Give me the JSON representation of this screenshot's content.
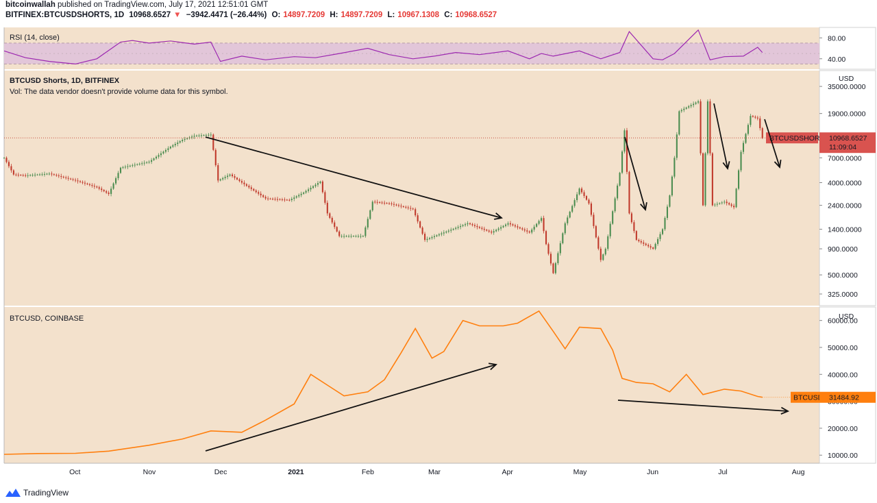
{
  "header": {
    "author": "bitcoinwallah",
    "published_text": " published on TradingView.com, July 17, 2021 12:51:01 GMT",
    "symbol": "BITFINEX:BTCUSDSHORTS, 1D",
    "last": "10968.6527",
    "change": "−3942.4471 (−26.44%)",
    "o_label": "O:",
    "o_value": "14897.7209",
    "h_label": "H:",
    "h_value": "14897.7209",
    "l_label": "L:",
    "l_value": "10967.1308",
    "c_label": "C:",
    "c_value": "10968.6527"
  },
  "footer": {
    "brand": "TradingView"
  },
  "colors": {
    "pane_bg": "#f3e1cc",
    "rsi_band": "#e2c6d9",
    "rsi_line": "#9c27b0",
    "up_candle": "#4a8c4f",
    "down_candle": "#c0392b",
    "btc_line": "#ff7f0e",
    "price_tag_shorts": "#d9534f",
    "price_tag_btc": "#ff7f0e",
    "arrow": "#111111"
  },
  "chart_data": [
    {
      "type": "line",
      "pane": "rsi",
      "title": "RSI (14, close)",
      "y_ticks": [
        "80.00",
        "40.00"
      ],
      "ylim": [
        20,
        100
      ],
      "band": [
        30,
        70
      ],
      "x_dates": [
        "2020-09-01",
        "2020-09-10",
        "2020-09-20",
        "2020-10-01",
        "2020-10-10",
        "2020-10-20",
        "2020-10-25",
        "2020-11-01",
        "2020-11-10",
        "2020-11-20",
        "2020-11-27",
        "2020-12-01",
        "2020-12-10",
        "2020-12-20",
        "2021-01-01",
        "2021-01-10",
        "2021-01-20",
        "2021-02-01",
        "2021-02-10",
        "2021-02-20",
        "2021-03-01",
        "2021-03-10",
        "2021-03-20",
        "2021-04-01",
        "2021-04-10",
        "2021-04-15",
        "2021-04-20",
        "2021-05-01",
        "2021-05-10",
        "2021-05-18",
        "2021-05-22",
        "2021-06-01",
        "2021-06-05",
        "2021-06-10",
        "2021-06-20",
        "2021-06-25",
        "2021-07-01",
        "2021-07-09",
        "2021-07-15",
        "2021-07-17"
      ],
      "values": [
        55,
        42,
        35,
        30,
        40,
        72,
        75,
        70,
        74,
        68,
        72,
        35,
        45,
        38,
        44,
        42,
        50,
        60,
        48,
        40,
        45,
        52,
        48,
        55,
        40,
        50,
        45,
        55,
        40,
        52,
        92,
        40,
        38,
        50,
        95,
        38,
        44,
        45,
        62,
        52
      ]
    },
    {
      "type": "candlestick",
      "pane": "main",
      "title": "BTCUSD Shorts, 1D, BITFINEX",
      "subtitle": "Vol: The data vendor doesn't provide volume data for this symbol.",
      "y_unit": "USD",
      "y_scale": "log",
      "y_ticks": [
        "35000.0000",
        "19000.0000",
        "7000.0000",
        "4000.0000",
        "2400.0000",
        "1400.0000",
        "900.0000",
        "500.0000",
        "325.0000"
      ],
      "ylim": [
        250,
        50000
      ],
      "price_label": "BTCUSDSHORTS",
      "price_value": "10968.6527",
      "countdown": "11:09:04",
      "close_path": [
        [
          "2020-09-01",
          7000
        ],
        [
          "2020-09-05",
          4800
        ],
        [
          "2020-09-10",
          4700
        ],
        [
          "2020-09-20",
          4900
        ],
        [
          "2020-10-01",
          4200
        ],
        [
          "2020-10-10",
          3600
        ],
        [
          "2020-10-15",
          3100
        ],
        [
          "2020-10-20",
          5600
        ],
        [
          "2020-11-01",
          6400
        ],
        [
          "2020-11-10",
          9000
        ],
        [
          "2020-11-15",
          10500
        ],
        [
          "2020-11-20",
          11500
        ],
        [
          "2020-11-27",
          11800
        ],
        [
          "2020-11-30",
          4200
        ],
        [
          "2020-12-05",
          4800
        ],
        [
          "2020-12-10",
          4000
        ],
        [
          "2020-12-20",
          2800
        ],
        [
          "2020-12-30",
          2700
        ],
        [
          "2021-01-05",
          3200
        ],
        [
          "2021-01-12",
          4100
        ],
        [
          "2021-01-15",
          2000
        ],
        [
          "2021-01-20",
          1200
        ],
        [
          "2021-01-30",
          1200
        ],
        [
          "2021-02-03",
          2600
        ],
        [
          "2021-02-10",
          2500
        ],
        [
          "2021-02-20",
          2200
        ],
        [
          "2021-02-25",
          1100
        ],
        [
          "2021-03-05",
          1300
        ],
        [
          "2021-03-15",
          1600
        ],
        [
          "2021-03-25",
          1300
        ],
        [
          "2021-04-01",
          1600
        ],
        [
          "2021-04-10",
          1300
        ],
        [
          "2021-04-15",
          1800
        ],
        [
          "2021-04-17",
          1000
        ],
        [
          "2021-04-20",
          520
        ],
        [
          "2021-04-25",
          1600
        ],
        [
          "2021-05-01",
          3500
        ],
        [
          "2021-05-05",
          2500
        ],
        [
          "2021-05-10",
          700
        ],
        [
          "2021-05-12",
          900
        ],
        [
          "2021-05-15",
          2100
        ],
        [
          "2021-05-18",
          5000
        ],
        [
          "2021-05-20",
          13000
        ],
        [
          "2021-05-22",
          2000
        ],
        [
          "2021-05-25",
          1100
        ],
        [
          "2021-06-01",
          900
        ],
        [
          "2021-06-05",
          1400
        ],
        [
          "2021-06-08",
          3000
        ],
        [
          "2021-06-10",
          7000
        ],
        [
          "2021-06-12",
          20000
        ],
        [
          "2021-06-20",
          25000
        ],
        [
          "2021-06-22",
          2400
        ],
        [
          "2021-06-24",
          25000
        ],
        [
          "2021-06-26",
          2400
        ],
        [
          "2021-07-01",
          2600
        ],
        [
          "2021-07-05",
          2300
        ],
        [
          "2021-07-08",
          8000
        ],
        [
          "2021-07-12",
          18000
        ],
        [
          "2021-07-15",
          17000
        ],
        [
          "2021-07-17",
          10968.6527
        ]
      ]
    },
    {
      "type": "line",
      "pane": "btc",
      "title": "BTCUSD, COINBASE",
      "y_unit": "USD",
      "y_ticks": [
        "60000.00",
        "50000.00",
        "40000.00",
        "30000.00",
        "20000.00",
        "10000.00"
      ],
      "ylim": [
        7000,
        65000
      ],
      "price_label": "BTCUSD",
      "price_value": "31484.92",
      "x": [
        "2020-09-01",
        "2020-09-15",
        "2020-10-01",
        "2020-10-15",
        "2020-11-01",
        "2020-11-15",
        "2020-11-27",
        "2020-12-10",
        "2020-12-20",
        "2021-01-01",
        "2021-01-08",
        "2021-01-15",
        "2021-01-22",
        "2021-02-01",
        "2021-02-08",
        "2021-02-15",
        "2021-02-21",
        "2021-02-28",
        "2021-03-05",
        "2021-03-13",
        "2021-03-20",
        "2021-03-30",
        "2021-04-05",
        "2021-04-14",
        "2021-04-20",
        "2021-04-25",
        "2021-05-01",
        "2021-05-10",
        "2021-05-15",
        "2021-05-19",
        "2021-05-25",
        "2021-06-01",
        "2021-06-08",
        "2021-06-15",
        "2021-06-22",
        "2021-07-01",
        "2021-07-08",
        "2021-07-15",
        "2021-07-17"
      ],
      "values": [
        10300,
        10600,
        10700,
        11500,
        13700,
        16000,
        19000,
        18500,
        23000,
        29000,
        40000,
        36000,
        32000,
        33500,
        38000,
        48000,
        57000,
        46000,
        48500,
        60000,
        58000,
        58000,
        59000,
        63500,
        56000,
        49500,
        57500,
        57000,
        49000,
        38500,
        37000,
        36500,
        33500,
        40000,
        32500,
        34500,
        33800,
        31800,
        31484.92
      ]
    }
  ],
  "time_axis": [
    "Oct",
    "Nov",
    "Dec",
    "2021",
    "Feb",
    "Mar",
    "Apr",
    "May",
    "Jun",
    "Jul",
    "Aug"
  ]
}
